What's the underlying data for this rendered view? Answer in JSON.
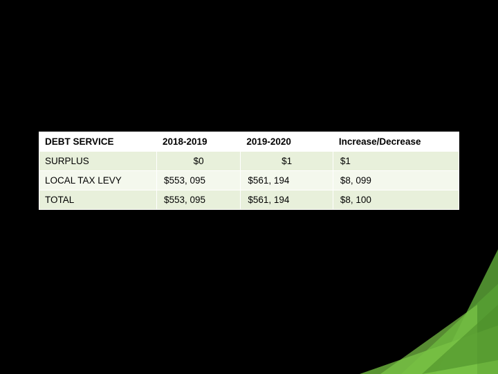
{
  "table": {
    "columns": [
      "DEBT SERVICE",
      "2018-2019",
      "2019-2020",
      "Increase/Decrease"
    ],
    "col_widths": [
      "28%",
      "20%",
      "22%",
      "30%"
    ],
    "rows": [
      {
        "label": "SURPLUS",
        "c1": "$0",
        "c2": "$1",
        "c3": "$1",
        "c1_align": "center",
        "c2_align": "center"
      },
      {
        "label": "LOCAL TAX LEVY",
        "c1": "$553, 095",
        "c2": "$561, 194",
        "c3": "$8, 099",
        "c1_align": "left",
        "c2_align": "left"
      },
      {
        "label": "TOTAL",
        "c1": "$553, 095",
        "c2": "$561, 194",
        "c3": "$8, 100",
        "c1_align": "left",
        "c2_align": "left"
      }
    ],
    "header_bg": "#ffffff",
    "row_bg": "#e8f0db",
    "row_alt_bg": "#f4f8ed",
    "text_color": "#000000",
    "font_size": 13.5
  },
  "decoration": {
    "colors": {
      "green_dark": "#3a7a1e",
      "green_mid": "#5faт33a",
      "green_light": "#6fb83f",
      "green_bright": "#7cc647"
    }
  }
}
